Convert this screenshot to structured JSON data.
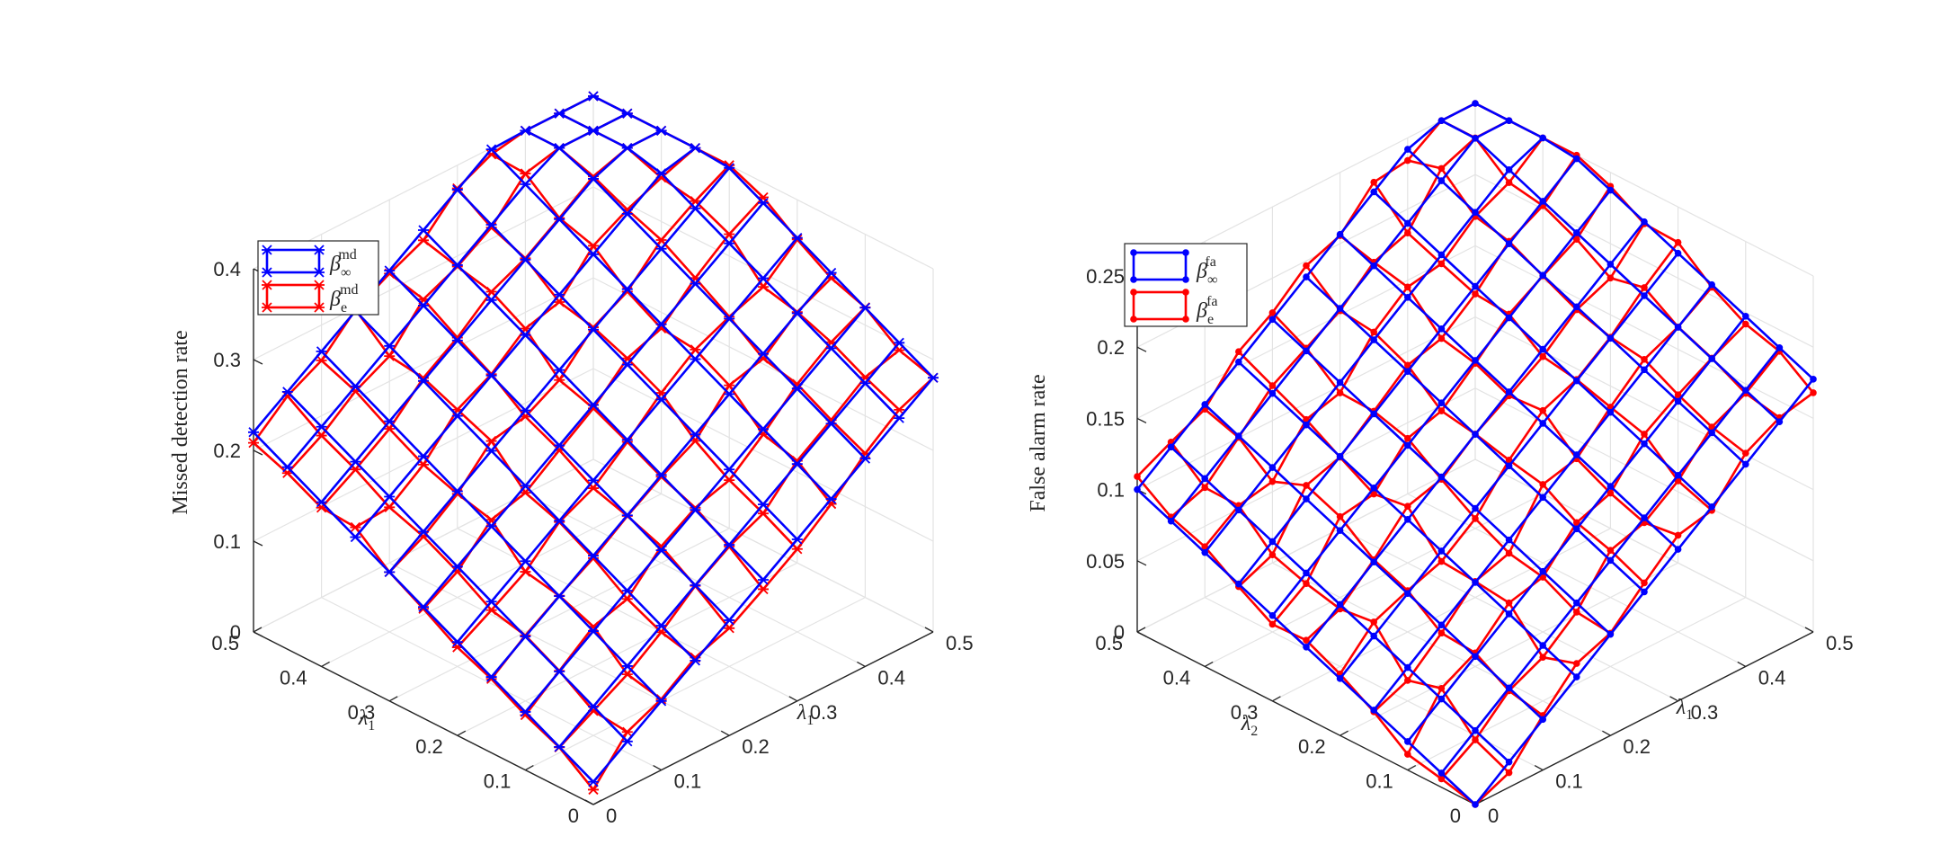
{
  "chart_data": [
    {
      "type": "surface",
      "title": "",
      "xlabel": "λ1",
      "x_label_sub": "1",
      "ylabel": "λ1",
      "y_label_sub": "1",
      "zlabel": "Missed detection rate",
      "xlim": [
        0,
        0.5
      ],
      "ylim": [
        0,
        0.5
      ],
      "zlim": [
        0,
        0.4
      ],
      "x_ticks": [
        "0",
        "0.1",
        "0.2",
        "0.3",
        "0.4",
        "0.5"
      ],
      "y_ticks": [
        "0",
        "0.1",
        "0.2",
        "0.3",
        "0.4",
        "0.5"
      ],
      "z_ticks": [
        "0",
        "0.1",
        "0.2",
        "0.3",
        "0.4"
      ],
      "grid_steps": 10,
      "grid": true,
      "legend_position": "top-left",
      "series": [
        {
          "name": "β∞md",
          "symbol": "β",
          "sub": "∞",
          "sup": "md",
          "color": "#0000ff",
          "marker": "asterisk",
          "z_model": "planar",
          "coef": [
            0.025,
            0.51,
            0.39
          ]
        },
        {
          "name": "βemd",
          "symbol": "β",
          "sub": "e",
          "sup": "md",
          "color": "#ff0000",
          "marker": "asterisk",
          "z_model": "planar-noisy",
          "coef": [
            0.025,
            0.51,
            0.39
          ],
          "noise": 0.012
        }
      ]
    },
    {
      "type": "surface",
      "title": "",
      "xlabel": "λ1",
      "x_label_sub": "1",
      "ylabel": "λ2",
      "y_label_sub": "2",
      "zlabel": "False alarm rate",
      "xlim": [
        0,
        0.5
      ],
      "ylim": [
        0,
        0.5
      ],
      "zlim": [
        0,
        0.25
      ],
      "x_ticks": [
        "0",
        "0.1",
        "0.2",
        "0.3",
        "0.4",
        "0.5"
      ],
      "y_ticks": [
        "0",
        "0.1",
        "0.2",
        "0.3",
        "0.4",
        "0.5"
      ],
      "z_ticks": [
        "0",
        "0.05",
        "0.1",
        "0.15",
        "0.2",
        "0.25"
      ],
      "grid_steps": 10,
      "grid": true,
      "legend_position": "top-left",
      "series": [
        {
          "name": "β∞fa",
          "symbol": "β",
          "sub": "∞",
          "sup": "fa",
          "color": "#0000ff",
          "marker": "dot",
          "z_model": "planar",
          "coef": [
            0.0,
            0.355,
            0.2
          ]
        },
        {
          "name": "βefa",
          "symbol": "β",
          "sub": "e",
          "sup": "fa",
          "color": "#ff0000",
          "marker": "dot",
          "z_model": "planar-noisy",
          "coef": [
            0.0,
            0.355,
            0.2
          ],
          "noise": 0.01
        }
      ]
    }
  ]
}
